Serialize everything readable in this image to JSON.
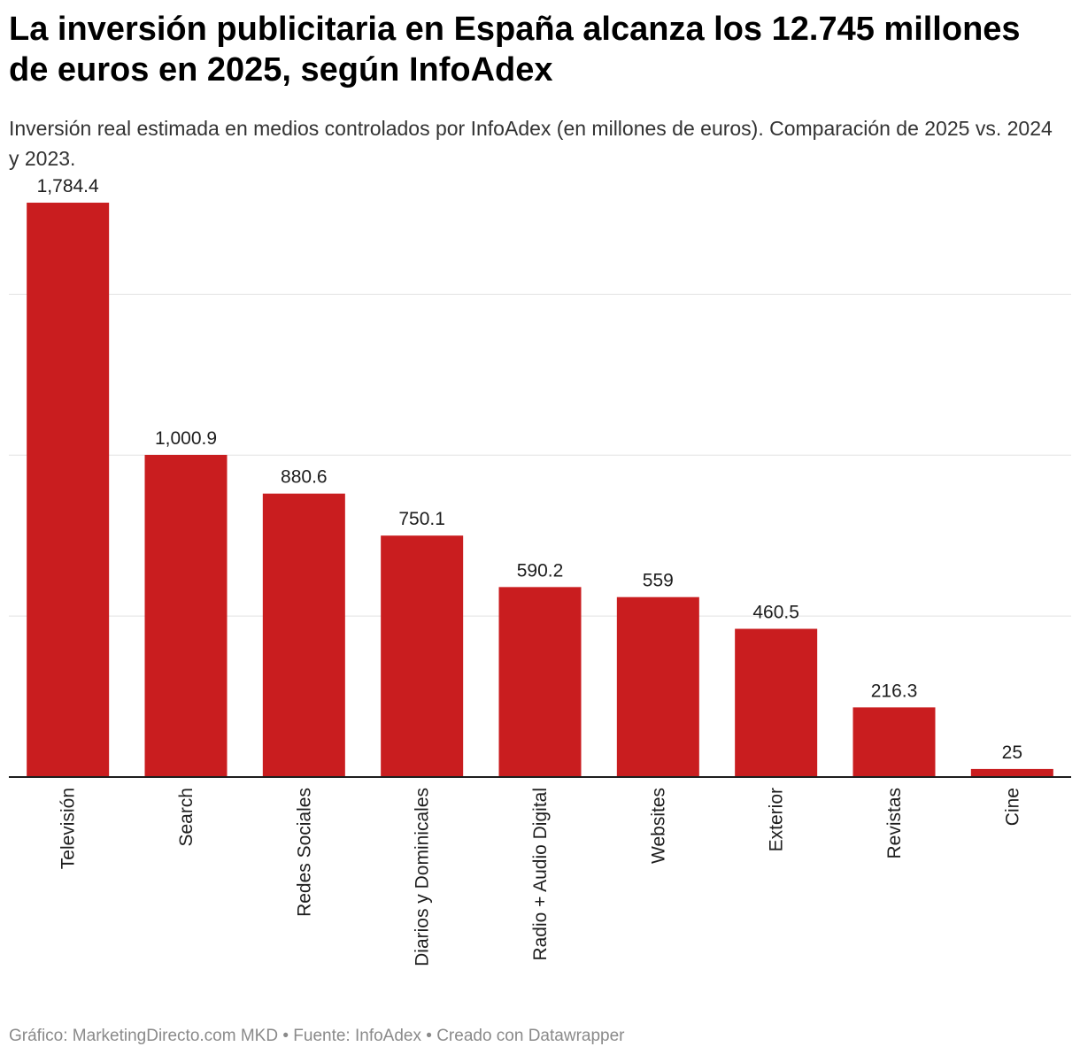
{
  "header": {
    "title": "La inversión publicitaria en España alcanza los 12.745 millones de euros en 2025, según InfoAdex",
    "subtitle": "Inversión real estimada en medios controlados por InfoAdex (en millones de euros). Comparación de 2025 vs. 2024 y 2023."
  },
  "footer": {
    "text": "Gráfico: MarketingDirecto.com MKD • Fuente: InfoAdex • Creado con Datawrapper"
  },
  "colors": {
    "bar": "#c91d1f",
    "grid": "#e2e2e2",
    "axis": "#1d1d1d"
  },
  "chart_data": {
    "type": "bar",
    "categories": [
      "Televisión",
      "Search",
      "Redes Sociales",
      "Diarios y Dominicales",
      "Radio + Audio Digital",
      "Websites",
      "Exterior",
      "Revistas",
      "Cine"
    ],
    "values": [
      1784.4,
      1000.9,
      880.6,
      750.1,
      590.2,
      559,
      460.5,
      216.3,
      25
    ],
    "value_labels": [
      "1,784.4",
      "1,000.9",
      "880.6",
      "750.1",
      "590.2",
      "559",
      "460.5",
      "216.3",
      "25"
    ],
    "ylim": [
      0,
      1900
    ],
    "gridlines": [
      500,
      1000,
      1500
    ],
    "grid": true
  }
}
